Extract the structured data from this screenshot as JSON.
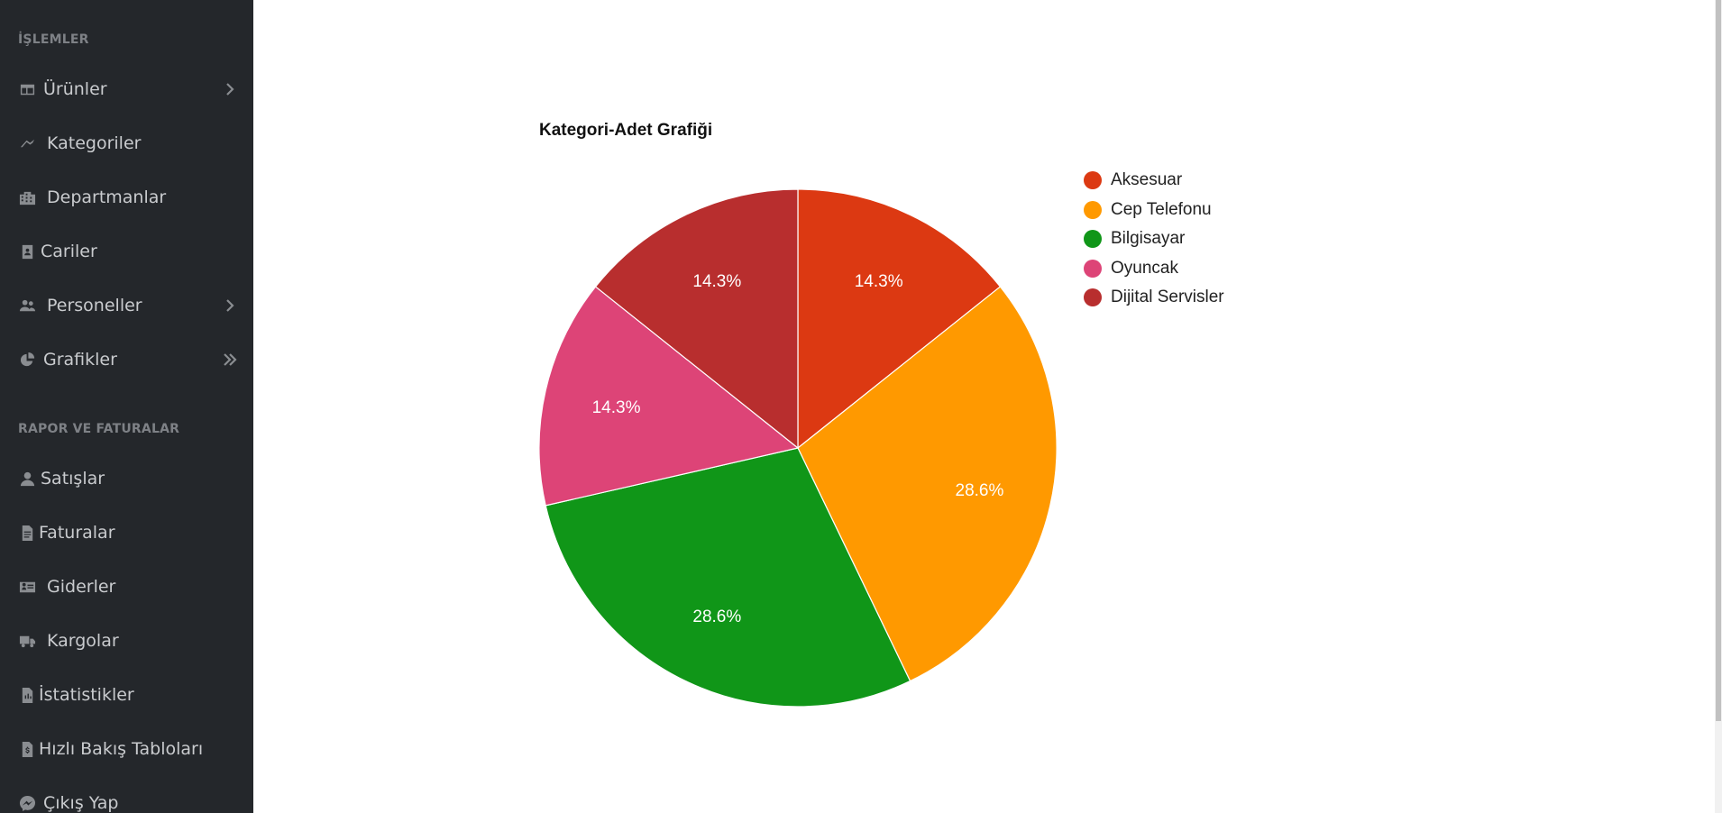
{
  "sidebar": {
    "sections": [
      {
        "title": "İŞLEMLER",
        "items": [
          {
            "label": "Ürünler",
            "icon": "table-icon",
            "arrow": "chevron-right"
          },
          {
            "label": "Kategoriler",
            "icon": "tag-icon",
            "arrow": ""
          },
          {
            "label": "Departmanlar",
            "icon": "building-icon",
            "arrow": ""
          },
          {
            "label": "Cariler",
            "icon": "contact-card-icon",
            "arrow": ""
          },
          {
            "label": "Personeller",
            "icon": "users-icon",
            "arrow": "chevron-right"
          },
          {
            "label": "Grafikler",
            "icon": "pie-chart-icon",
            "arrow": "double-chevron-right"
          }
        ]
      },
      {
        "title": "RAPOR VE FATURALAR",
        "items": [
          {
            "label": "Satışlar",
            "icon": "user-icon",
            "arrow": ""
          },
          {
            "label": "Faturalar",
            "icon": "invoice-icon",
            "arrow": ""
          },
          {
            "label": "Giderler",
            "icon": "id-card-icon",
            "arrow": ""
          },
          {
            "label": "Kargolar",
            "icon": "truck-icon",
            "arrow": ""
          },
          {
            "label": "İstatistikler",
            "icon": "statistics-file-icon",
            "arrow": ""
          },
          {
            "label": "Hızlı Bakış Tabloları",
            "icon": "file-dollar-icon",
            "arrow": ""
          },
          {
            "label": "Çıkış Yap",
            "icon": "messenger-icon",
            "arrow": ""
          }
        ]
      }
    ]
  },
  "chart_data": {
    "type": "pie",
    "title": "Kategori-Adet Grafiği",
    "categories": [
      "Aksesuar",
      "Cep Telefonu",
      "Bilgisayar",
      "Oyuncak",
      "Dijital Servisler"
    ],
    "values": [
      1,
      2,
      2,
      1,
      1
    ],
    "percent_labels": [
      "14.3%",
      "28.6%",
      "28.6%",
      "14.3%",
      "14.3%"
    ],
    "colors": [
      "#dc3912",
      "#ff9900",
      "#109618",
      "#dd4477",
      "#b82e2e"
    ],
    "legend_position": "right"
  }
}
